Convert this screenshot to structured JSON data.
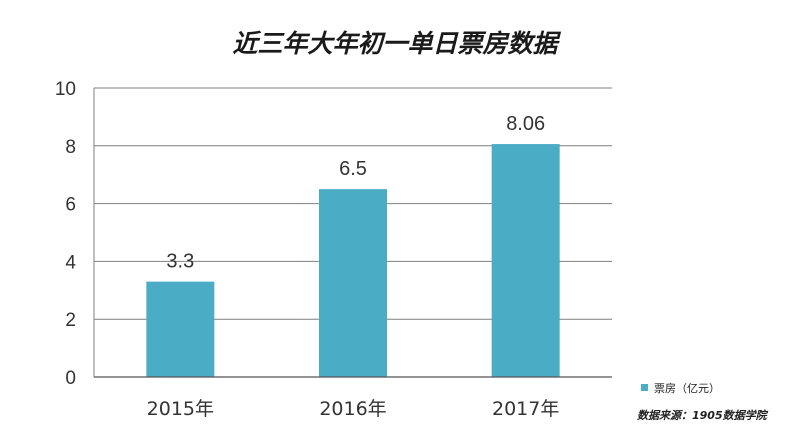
{
  "chart_data": {
    "type": "bar",
    "title": "近三年大年初一单日票房数据",
    "categories": [
      "2015年",
      "2016年",
      "2017年"
    ],
    "series": [
      {
        "name": "票房（亿元）",
        "values": [
          3.3,
          6.5,
          8.06
        ],
        "color": "#4bacc6"
      }
    ],
    "data_labels": [
      "3.3",
      "6.5",
      "8.06"
    ],
    "y_ticks": [
      "0",
      "2",
      "4",
      "6",
      "8",
      "10"
    ],
    "ylim": [
      0,
      10
    ],
    "grid": true,
    "legend_position": "bottom-right",
    "source": "数据来源：1905数据学院"
  }
}
